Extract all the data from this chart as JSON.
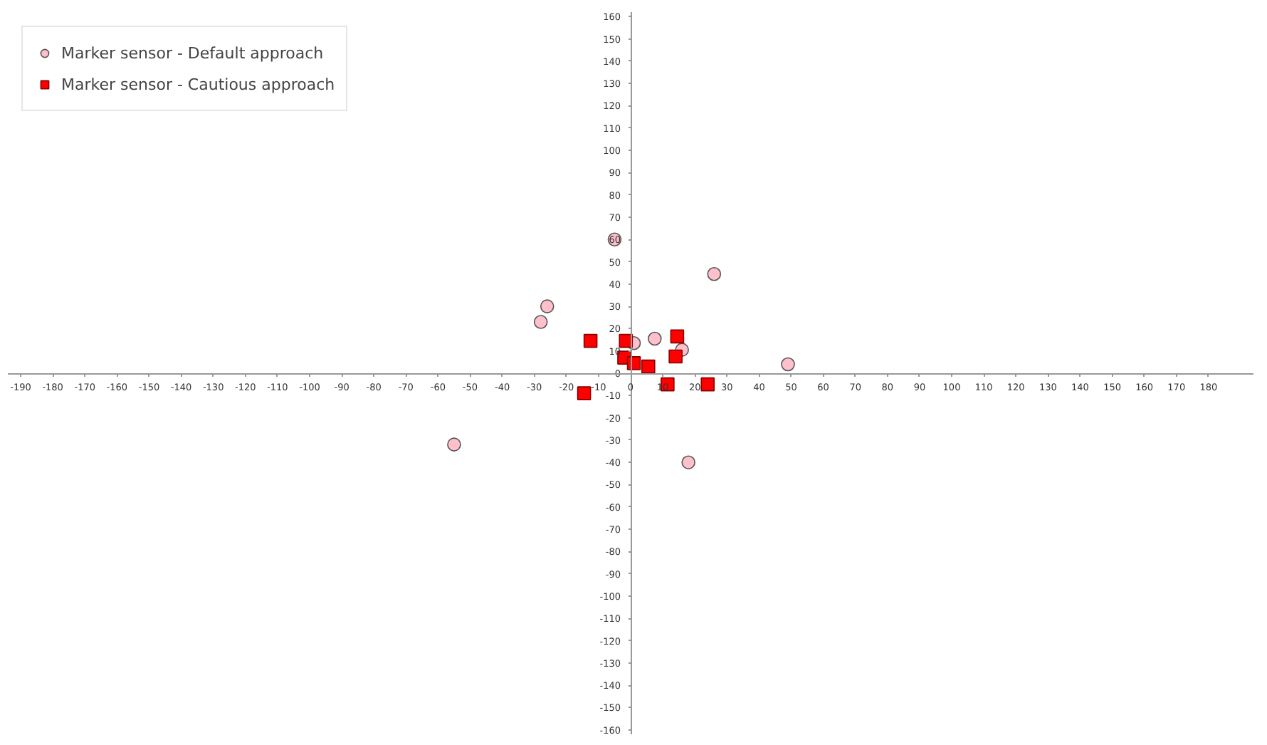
{
  "chart_data": {
    "type": "scatter",
    "xlim": [
      -194,
      194
    ],
    "ylim": [
      -162,
      162
    ],
    "xticks": [
      -190,
      -180,
      -170,
      -160,
      -150,
      -140,
      -130,
      -120,
      -110,
      -100,
      -90,
      -80,
      -70,
      -60,
      -50,
      -40,
      -30,
      -20,
      -10,
      0,
      10,
      20,
      30,
      40,
      50,
      60,
      70,
      80,
      90,
      100,
      110,
      120,
      130,
      140,
      150,
      160,
      170,
      180
    ],
    "yticks": [
      -160,
      -150,
      -140,
      -130,
      -120,
      -110,
      -100,
      -90,
      -80,
      -70,
      -60,
      -50,
      -40,
      -30,
      -20,
      -10,
      0,
      10,
      20,
      30,
      40,
      50,
      60,
      70,
      80,
      90,
      100,
      110,
      120,
      130,
      140,
      150,
      160
    ],
    "grid": false,
    "legend": "top left",
    "series": [
      {
        "name": "Marker sensor - Default approach",
        "color": "#ffc0cb",
        "marker": "circle",
        "x": [
          -5,
          26,
          -26,
          -28,
          1,
          7.5,
          16,
          49,
          -55,
          18
        ],
        "values": [
          60,
          44.5,
          30,
          23,
          13.5,
          15.5,
          10.5,
          4,
          -32,
          -40
        ]
      },
      {
        "name": "Marker sensor - Cautious approach",
        "color": "#ff0000",
        "marker": "square",
        "x": [
          -12.5,
          -1.5,
          14.5,
          -2,
          1,
          5.5,
          14,
          11.5,
          24,
          -14.5
        ],
        "values": [
          14.5,
          14.5,
          16.5,
          7,
          4.5,
          3,
          7.5,
          -5,
          -5,
          -9
        ]
      }
    ]
  }
}
